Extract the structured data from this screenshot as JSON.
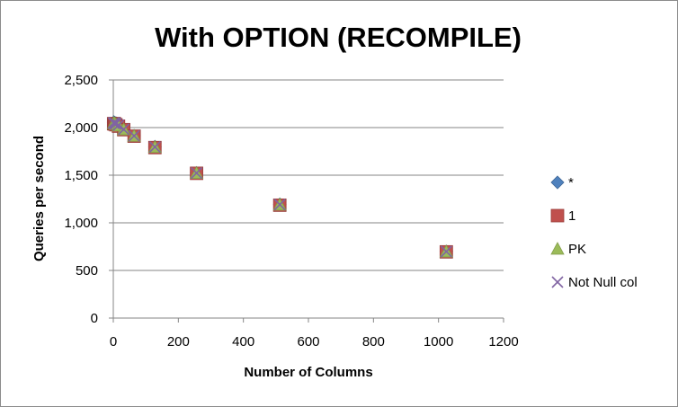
{
  "chart_data": {
    "type": "scatter",
    "title": "With OPTION (RECOMPILE)",
    "xlabel": "Number of Columns",
    "ylabel": "Queries per second",
    "xlim": [
      0,
      1200
    ],
    "ylim": [
      0,
      2500
    ],
    "xticks": [
      0,
      200,
      400,
      600,
      800,
      1000,
      1200
    ],
    "yticks": [
      0,
      500,
      1000,
      1500,
      2000,
      2500
    ],
    "xtick_labels": [
      "0",
      "200",
      "400",
      "600",
      "800",
      "1000",
      "1200"
    ],
    "ytick_labels": [
      "0",
      "500",
      "1,000",
      "1,500",
      "2,000",
      "2,500"
    ],
    "grid": "horizontal",
    "legend_position": "right",
    "series": [
      {
        "name": "*",
        "marker": "diamond",
        "color": "#4f81bd",
        "x": [
          1,
          2,
          4,
          8,
          16,
          32,
          64,
          128,
          256,
          512,
          1024
        ],
        "y": [
          2055,
          2058,
          2052,
          2048,
          2040,
          1985,
          1915,
          1800,
          1525,
          1195,
          700
        ]
      },
      {
        "name": "1",
        "marker": "square",
        "color": "#c0504d",
        "x": [
          1,
          2,
          4,
          8,
          16,
          32,
          64,
          128,
          256,
          512,
          1024
        ],
        "y": [
          2040,
          2042,
          2038,
          2030,
          2015,
          1978,
          1910,
          1790,
          1520,
          1185,
          695
        ]
      },
      {
        "name": "PK",
        "marker": "triangle",
        "color": "#9bbb59",
        "x": [
          1,
          2,
          4,
          8,
          16,
          32,
          64,
          128,
          256,
          512,
          1024
        ],
        "y": [
          2045,
          2047,
          2043,
          2035,
          2020,
          1980,
          1912,
          1795,
          1522,
          1190,
          698
        ]
      },
      {
        "name": "Not Null col",
        "marker": "x",
        "color": "#8064a2",
        "x": [
          1,
          2,
          4,
          8,
          16,
          32,
          64,
          128,
          256,
          512,
          1024
        ],
        "y": [
          2048,
          2050,
          2046,
          2040,
          2025,
          1982,
          1913,
          1797,
          1523,
          1192,
          699
        ]
      }
    ]
  }
}
